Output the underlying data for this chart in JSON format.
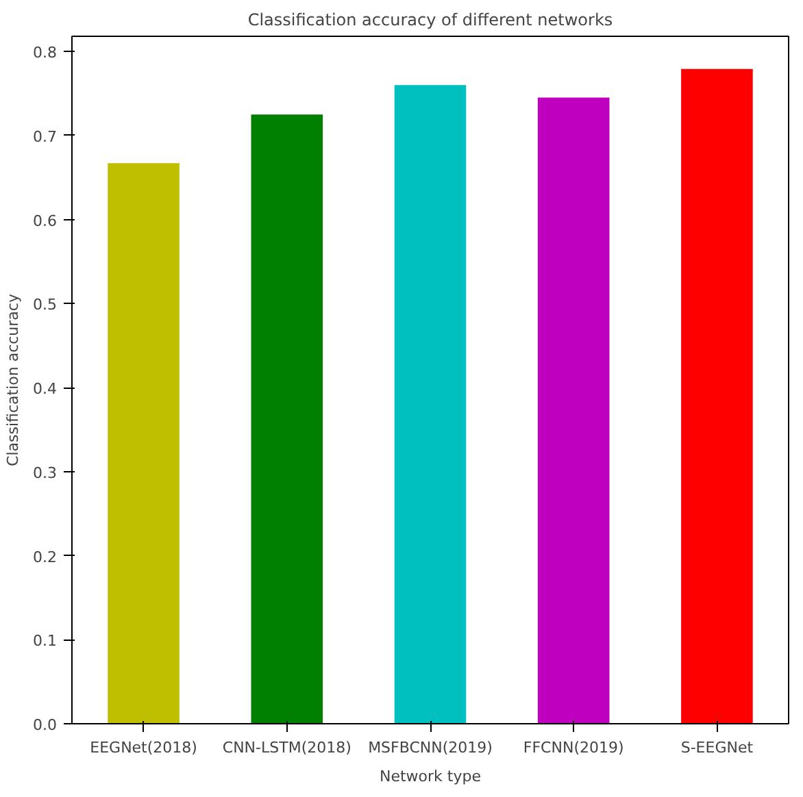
{
  "chart_data": {
    "type": "bar",
    "title": "Classification accuracy of different networks",
    "xlabel": "Network type",
    "ylabel": "Classification accuracy",
    "categories": [
      "EEGNet(2018)",
      "CNN-LSTM(2018)",
      "MSFBCNN(2019)",
      "FFCNN(2019)",
      "S-EEGNet"
    ],
    "values": [
      0.667,
      0.725,
      0.76,
      0.745,
      0.779
    ],
    "colors": [
      "#bfbf00",
      "#008000",
      "#00bfbf",
      "#bf00bf",
      "#ff0000"
    ],
    "ylim": [
      0,
      0.818
    ],
    "yticks": [
      {
        "value": 0,
        "label": "0.0"
      },
      0.1,
      0.2,
      0.3,
      0.4,
      0.5,
      0.6,
      0.7,
      0.8
    ],
    "grid": false
  }
}
